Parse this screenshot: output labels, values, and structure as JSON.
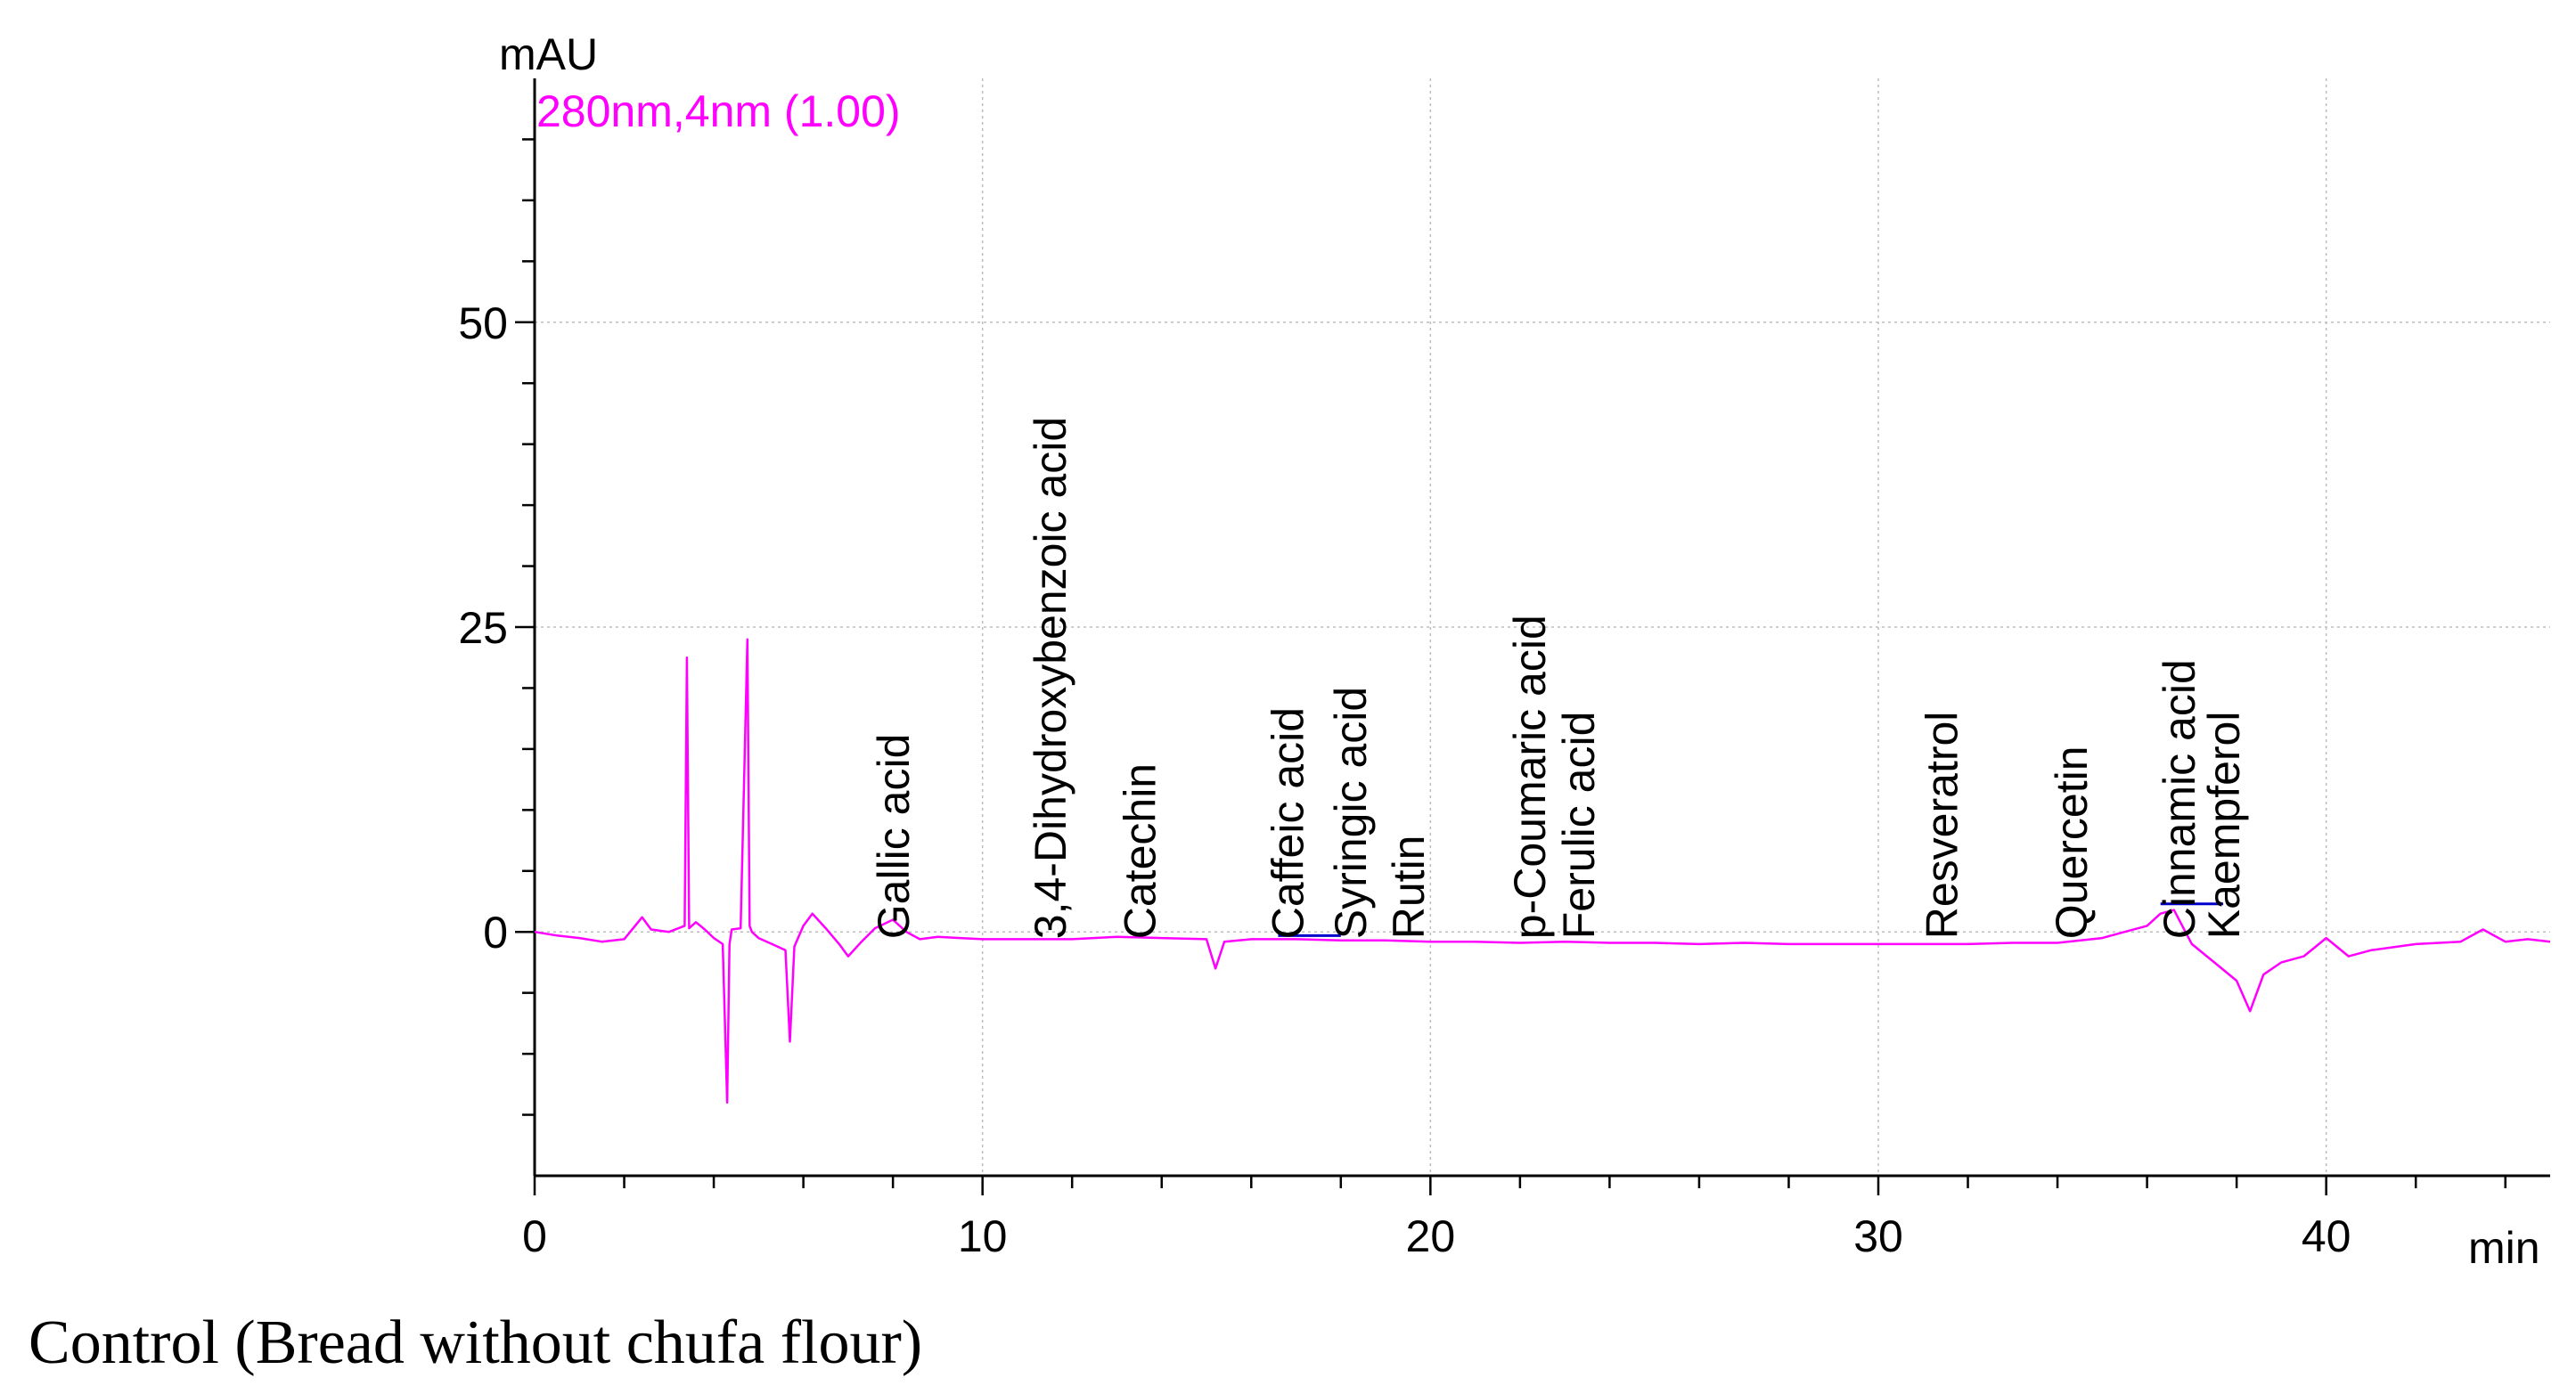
{
  "chart_data": {
    "type": "line",
    "title": "",
    "subtitle": "Control (Bread without chufa flour)",
    "xlabel": "min",
    "ylabel": "mAU",
    "xlim": [
      0,
      45
    ],
    "ylim": [
      -20,
      70
    ],
    "x_ticks": [
      0,
      10,
      20,
      30,
      40
    ],
    "y_ticks": [
      0,
      25,
      50
    ],
    "x_tick_labels": [
      "0",
      "10",
      "20",
      "30",
      "40"
    ],
    "y_tick_labels": [
      "0",
      "25",
      "50"
    ],
    "grid": true,
    "series": [
      {
        "name": "280nm,4nm (1.00)",
        "color": "#ff00ff",
        "x": [
          0,
          0.5,
          1.0,
          1.5,
          2.0,
          2.4,
          2.6,
          3.0,
          3.35,
          3.4,
          3.45,
          3.6,
          3.8,
          4.0,
          4.2,
          4.3,
          4.35,
          4.4,
          4.6,
          4.75,
          4.8,
          4.85,
          5.0,
          5.3,
          5.6,
          5.7,
          5.8,
          6.0,
          6.2,
          6.5,
          6.8,
          7.0,
          7.3,
          7.6,
          8.0,
          8.3,
          8.6,
          9.0,
          9.5,
          10.0,
          11.0,
          12.0,
          13.0,
          14.0,
          15.0,
          15.2,
          15.4,
          16.0,
          17.0,
          18.0,
          19.0,
          20.0,
          21.0,
          22.0,
          23.0,
          24.0,
          25.0,
          26.0,
          27.0,
          28.0,
          29.0,
          30.0,
          31.0,
          32.0,
          33.0,
          34.0,
          35.0,
          35.5,
          36.0,
          36.3,
          36.6,
          37.0,
          37.5,
          38.0,
          38.3,
          38.6,
          39.0,
          39.5,
          40.0,
          40.5,
          41.0,
          42.0,
          43.0,
          43.5,
          44.0,
          44.5,
          45.0
        ],
        "y": [
          0,
          -0.3,
          -0.5,
          -0.8,
          -0.6,
          1.2,
          0.2,
          0,
          0.5,
          22.5,
          0.3,
          0.8,
          0.2,
          -0.5,
          -1.0,
          -14,
          -1.0,
          0.2,
          0.3,
          24,
          0.5,
          0,
          -0.5,
          -1.0,
          -1.5,
          -9,
          -1.2,
          0.5,
          1.5,
          0.3,
          -1.0,
          -2.0,
          -0.8,
          0.3,
          1.0,
          0,
          -0.6,
          -0.4,
          -0.5,
          -0.6,
          -0.6,
          -0.6,
          -0.4,
          -0.5,
          -0.6,
          -3.0,
          -0.8,
          -0.6,
          -0.6,
          -0.7,
          -0.7,
          -0.8,
          -0.8,
          -0.9,
          -0.8,
          -0.9,
          -0.9,
          -1.0,
          -0.9,
          -1.0,
          -1.0,
          -1.0,
          -1.0,
          -1.0,
          -0.9,
          -0.9,
          -0.5,
          0,
          0.5,
          1.5,
          1.8,
          -1.0,
          -2.5,
          -4.0,
          -6.5,
          -3.5,
          -2.5,
          -2.0,
          -0.5,
          -2.0,
          -1.5,
          -1.0,
          -0.8,
          0.2,
          -0.8,
          -0.6,
          -0.8
        ]
      }
    ],
    "peak_labels": [
      {
        "text": "Gallic acid",
        "x": 8.0
      },
      {
        "text": "3,4-Dihydroxybenzoic acid",
        "x": 11.5
      },
      {
        "text": "Catechin",
        "x": 13.5
      },
      {
        "text": "Caffeic acid",
        "x": 16.8
      },
      {
        "text": "Syringic acid",
        "x": 18.2
      },
      {
        "text": "Rutin",
        "x": 19.5
      },
      {
        "text": "p-Coumaric acid",
        "x": 22.2
      },
      {
        "text": "Ferulic acid",
        "x": 23.3
      },
      {
        "text": "Resveratrol",
        "x": 31.4
      },
      {
        "text": "Quercetin",
        "x": 34.3
      },
      {
        "text": "Cinnamic acid",
        "x": 36.7
      },
      {
        "text": "Kaempferol",
        "x": 37.7
      }
    ],
    "integration_baselines": [
      {
        "x": [
          16.6,
          18.0
        ],
        "y": [
          -0.3,
          -0.3
        ],
        "color": "#0000cc"
      },
      {
        "x": [
          36.3,
          37.7
        ],
        "y": [
          2.3,
          2.3
        ],
        "color": "#0000cc"
      }
    ]
  }
}
